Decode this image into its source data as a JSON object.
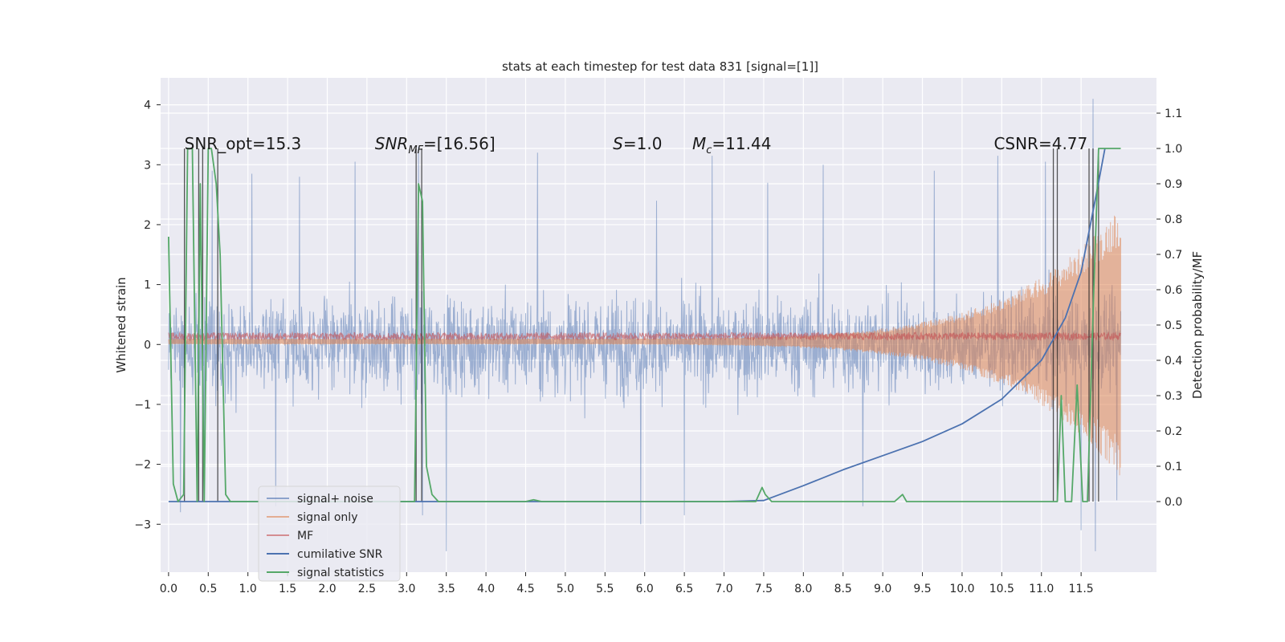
{
  "chart_data": {
    "type": "line",
    "title": "stats at each timestep for test data 831 [signal=[1]]",
    "xlabel": "",
    "ylabel": "Whitened strain",
    "ylabel_right": "Detection probability/MF",
    "xlim": [
      -0.1,
      12.45
    ],
    "ylim": [
      -3.8,
      4.45
    ],
    "ylim_right": [
      -0.2,
      1.2
    ],
    "x_ticks": [
      0.0,
      0.5,
      1.0,
      1.5,
      2.0,
      2.5,
      3.0,
      3.5,
      4.0,
      4.5,
      5.0,
      5.5,
      6.0,
      6.5,
      7.0,
      7.5,
      8.0,
      8.5,
      9.0,
      9.5,
      10.0,
      10.5,
      11.0,
      11.5
    ],
    "x_tick_labels": [
      "0.0",
      "0.5",
      "1.0",
      "1.5",
      "2.0",
      "2.5",
      "3.0",
      "3.5",
      "4.0",
      "4.5",
      "5.0",
      "5.5",
      "6.0",
      "6.5",
      "7.0",
      "7.5",
      "8.0",
      "8.5",
      "9.0",
      "9.5",
      "10.0",
      "10.5",
      "11.0",
      "11.5"
    ],
    "y_ticks": [
      -3,
      -2,
      -1,
      0,
      1,
      2,
      3,
      4
    ],
    "y_tick_labels": [
      "−3",
      "−2",
      "−1",
      "0",
      "1",
      "2",
      "3",
      "4"
    ],
    "y_right_ticks": [
      0.0,
      0.1,
      0.2,
      0.3,
      0.4,
      0.5,
      0.6,
      0.7,
      0.8,
      0.9,
      1.0,
      1.1
    ],
    "y_right_tick_labels": [
      "0.0",
      "0.1",
      "0.2",
      "0.3",
      "0.4",
      "0.5",
      "0.6",
      "0.7",
      "0.8",
      "0.9",
      "1.0",
      "1.1"
    ],
    "grid": true,
    "legend_position": "lower-left",
    "annotations": [
      {
        "text": "SNR_opt=15.3",
        "x": 0.2,
        "y": 3.35
      },
      {
        "text": "SNR_MF=[16.56]",
        "x": 2.6,
        "y": 3.35
      },
      {
        "text": "S=1.0",
        "x": 5.6,
        "y": 3.35
      },
      {
        "text": "M_c=11.44",
        "x": 6.6,
        "y": 3.35
      },
      {
        "text": "CSNR=4.77",
        "x": 10.4,
        "y": 3.35
      }
    ],
    "series": [
      {
        "name": "signal+ noise",
        "color": "#4c72b0",
        "type": "noise",
        "x_range": [
          0.0,
          12.0
        ],
        "typical_range": [
          -1.5,
          1.5
        ],
        "peaks": [
          [
            0.55,
            2.9
          ],
          [
            1.05,
            2.85
          ],
          [
            1.65,
            2.8
          ],
          [
            2.35,
            3.05
          ],
          [
            3.15,
            3.3
          ],
          [
            4.65,
            3.2
          ],
          [
            6.15,
            2.4
          ],
          [
            6.85,
            3.15
          ],
          [
            7.55,
            2.7
          ],
          [
            8.25,
            3.0
          ],
          [
            9.65,
            2.9
          ],
          [
            10.45,
            3.15
          ],
          [
            11.05,
            3.05
          ],
          [
            11.65,
            4.1
          ],
          [
            0.15,
            -2.8
          ],
          [
            0.45,
            -2.6
          ],
          [
            1.35,
            -2.7
          ],
          [
            3.5,
            -3.45
          ],
          [
            3.2,
            -2.85
          ],
          [
            5.95,
            -3.0
          ],
          [
            6.5,
            -2.85
          ],
          [
            8.75,
            -2.7
          ],
          [
            11.5,
            -3.1
          ],
          [
            11.68,
            -3.45
          ],
          [
            11.95,
            -2.6
          ]
        ]
      },
      {
        "name": "signal only",
        "color": "#dd8452",
        "type": "chirp",
        "x_range": [
          0.0,
          12.0
        ],
        "amplitude_start": 0.05,
        "amplitude_end": 2.3
      },
      {
        "name": "MF",
        "color": "#c44e52",
        "type": "noise",
        "x_range": [
          0.0,
          12.0
        ],
        "typical_range": [
          0.0,
          0.25
        ]
      },
      {
        "name": "cumilative SNR",
        "color": "#4c72b0",
        "axis": "right",
        "x": [
          0.0,
          1.0,
          2.0,
          3.0,
          4.0,
          5.0,
          6.0,
          7.0,
          7.5,
          8.0,
          8.5,
          9.0,
          9.5,
          10.0,
          10.5,
          11.0,
          11.3,
          11.5,
          11.7,
          11.8
        ],
        "y": [
          0.0,
          0.0,
          0.0,
          0.0,
          0.0,
          0.0,
          0.0,
          0.0,
          0.003,
          0.045,
          0.09,
          0.13,
          0.17,
          0.22,
          0.29,
          0.4,
          0.52,
          0.65,
          0.88,
          1.0
        ]
      },
      {
        "name": "signal statistics",
        "color": "#55a868",
        "axis": "right",
        "x": [
          0.0,
          0.06,
          0.12,
          0.19,
          0.24,
          0.3,
          0.36,
          0.4,
          0.45,
          0.5,
          0.54,
          0.6,
          0.65,
          0.72,
          0.78,
          3.05,
          3.1,
          3.15,
          3.2,
          3.25,
          3.32,
          3.4,
          4.5,
          4.6,
          4.7,
          7.4,
          7.48,
          7.52,
          7.6,
          9.15,
          9.25,
          9.3,
          9.38,
          11.2,
          11.25,
          11.3,
          11.38,
          11.45,
          11.52,
          11.58,
          11.66,
          11.72,
          11.78,
          11.82,
          12.0
        ],
        "y": [
          0.75,
          0.05,
          0.0,
          0.02,
          1.0,
          1.0,
          0.0,
          0.9,
          0.0,
          1.0,
          1.0,
          0.9,
          0.7,
          0.02,
          0.0,
          0.0,
          0.0,
          0.9,
          0.85,
          0.1,
          0.02,
          0.0,
          0.0,
          0.005,
          0.0,
          0.0,
          0.04,
          0.02,
          0.0,
          0.0,
          0.02,
          0.0,
          0.0,
          0.0,
          0.3,
          0.0,
          0.0,
          0.33,
          0.0,
          0.0,
          0.6,
          1.0,
          1.0,
          1.0,
          1.0
        ]
      }
    ],
    "vertical_lines": [
      0.2,
      0.38,
      0.43,
      0.62,
      3.12,
      3.19,
      11.15,
      11.2,
      11.6,
      11.65,
      11.72
    ]
  }
}
